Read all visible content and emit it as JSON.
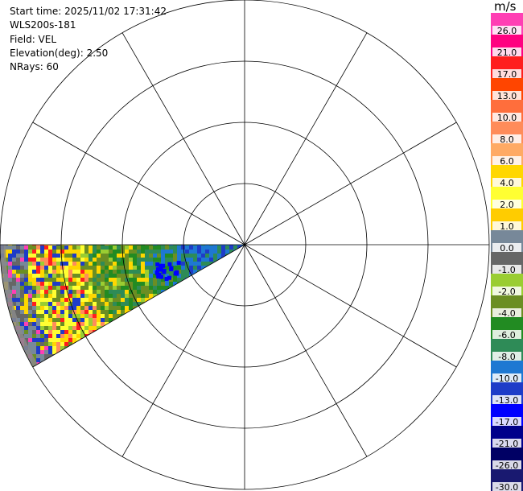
{
  "info": {
    "start_time": "Start time: 2025/11/02 17:31:42",
    "instrument": "WLS200s-181",
    "field": "Field: VEL",
    "elevation": "Elevation(deg): 2.50",
    "nrays": "NRays: 60"
  },
  "colorbar": {
    "units": "m/s",
    "bins": [
      {
        "color": "#ff3fb4",
        "label": "26.0"
      },
      {
        "color": "#ff0080",
        "label": "21.0"
      },
      {
        "color": "#ff1e1e",
        "label": "17.0"
      },
      {
        "color": "#ff4500",
        "label": "13.0"
      },
      {
        "color": "#ff6e3c",
        "label": "10.0"
      },
      {
        "color": "#ff8c5a",
        "label": "8.0"
      },
      {
        "color": "#ffaa64",
        "label": "6.0"
      },
      {
        "color": "#ffd700",
        "label": "4.0"
      },
      {
        "color": "#ffff32",
        "label": "2.0"
      },
      {
        "color": "#ffcc00",
        "label": "1.0"
      },
      {
        "color": "#778899",
        "label": "0.0"
      },
      {
        "color": "#666666",
        "label": "-1.0"
      },
      {
        "color": "#9acd32",
        "label": "-2.0"
      },
      {
        "color": "#6b8e23",
        "label": "-4.0"
      },
      {
        "color": "#228b22",
        "label": "-6.0"
      },
      {
        "color": "#2e8b57",
        "label": "-8.0"
      },
      {
        "color": "#1e78d2",
        "label": "-10.0"
      },
      {
        "color": "#1e3cc8",
        "label": "-13.0"
      },
      {
        "color": "#0000ff",
        "label": "-17.0"
      },
      {
        "color": "#00008b",
        "label": "-21.0"
      },
      {
        "color": "#000064",
        "label": "-26.0"
      },
      {
        "color": "#191970",
        "label": "-30.0"
      }
    ]
  },
  "ppi": {
    "sector_azimuth_deg": [
      240,
      270
    ],
    "range_rings": 4
  }
}
